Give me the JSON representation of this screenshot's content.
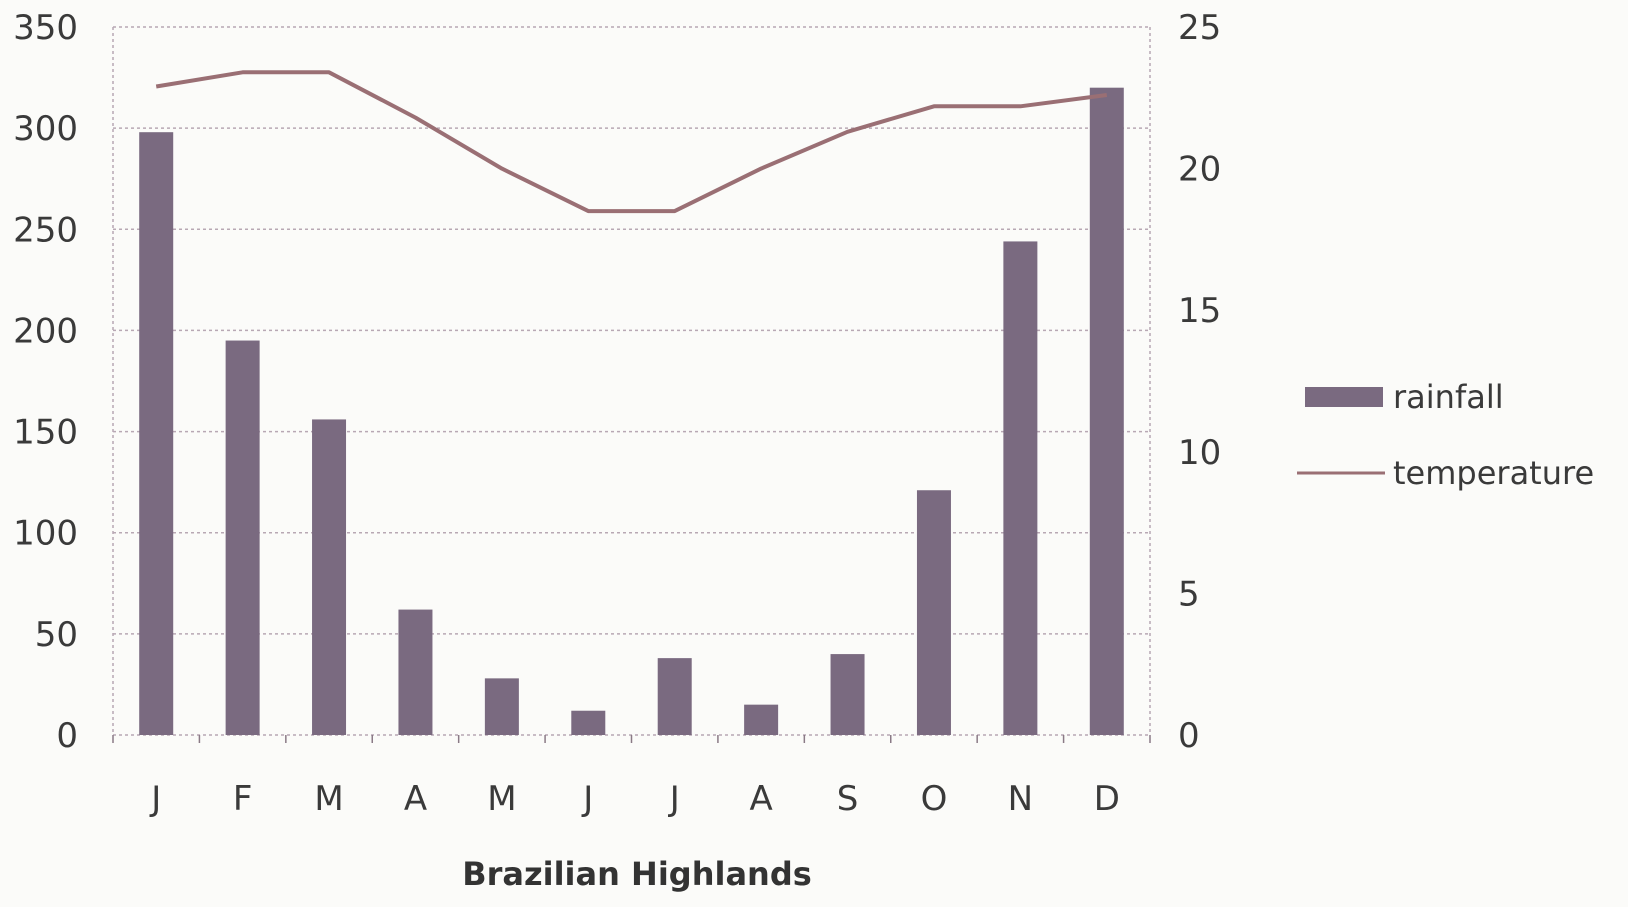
{
  "chart_data": {
    "type": "bar",
    "title": "Brazilian Highlands",
    "categories": [
      "J",
      "F",
      "M",
      "A",
      "M",
      "J",
      "J",
      "A",
      "S",
      "O",
      "N",
      "D"
    ],
    "series": [
      {
        "name": "rainfall",
        "type": "bar",
        "axis": "left",
        "color": "#7a6a80",
        "values": [
          298,
          195,
          156,
          62,
          28,
          12,
          38,
          15,
          40,
          121,
          244,
          320
        ]
      },
      {
        "name": "temperature",
        "type": "line",
        "axis": "right",
        "color": "#9a6f74",
        "values": [
          22.9,
          23.4,
          23.4,
          21.8,
          20.0,
          18.5,
          18.5,
          20.0,
          21.3,
          22.2,
          22.2,
          22.6
        ]
      }
    ],
    "y_left": {
      "lim": [
        0,
        350
      ],
      "ticks": [
        "0",
        "50",
        "100",
        "150",
        "200",
        "250",
        "300",
        "350"
      ]
    },
    "y_right": {
      "lim": [
        0,
        25
      ],
      "ticks": [
        "0",
        "5",
        "10",
        "15",
        "20",
        "25"
      ]
    },
    "grid": true,
    "legend": "right"
  }
}
